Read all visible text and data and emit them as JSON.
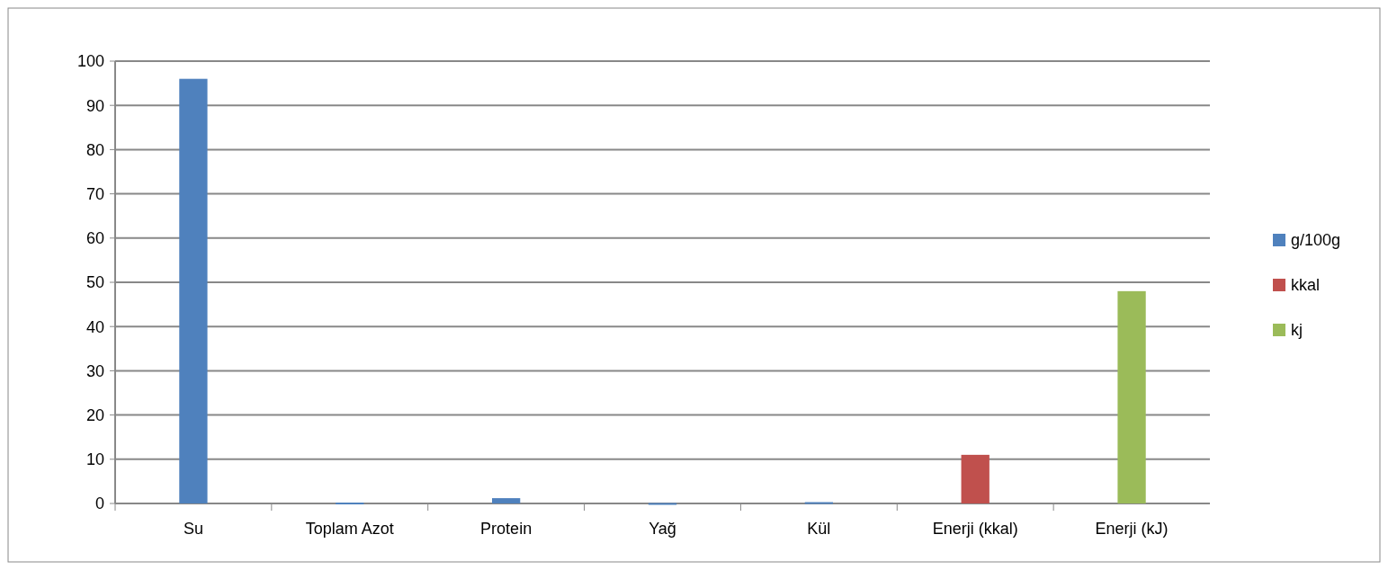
{
  "chart_data": {
    "type": "bar",
    "categories": [
      "Su",
      "Toplam Azot",
      "Protein",
      "Yağ",
      "Kül",
      "Enerji (kkal)",
      "Enerji (kJ)"
    ],
    "series": [
      {
        "name": "g/100g",
        "color": "#4f81bd",
        "values": [
          96,
          0.2,
          1.2,
          0.1,
          0.3,
          null,
          null
        ]
      },
      {
        "name": "kkal",
        "color": "#c0504d",
        "values": [
          null,
          null,
          null,
          null,
          null,
          11,
          null
        ]
      },
      {
        "name": "kj",
        "color": "#9bbb59",
        "values": [
          null,
          null,
          null,
          null,
          null,
          null,
          48
        ]
      }
    ],
    "ylim": [
      0,
      100
    ],
    "yticks": [
      0,
      10,
      20,
      30,
      40,
      50,
      60,
      70,
      80,
      90,
      100
    ],
    "grid": "y",
    "legend": "right"
  }
}
